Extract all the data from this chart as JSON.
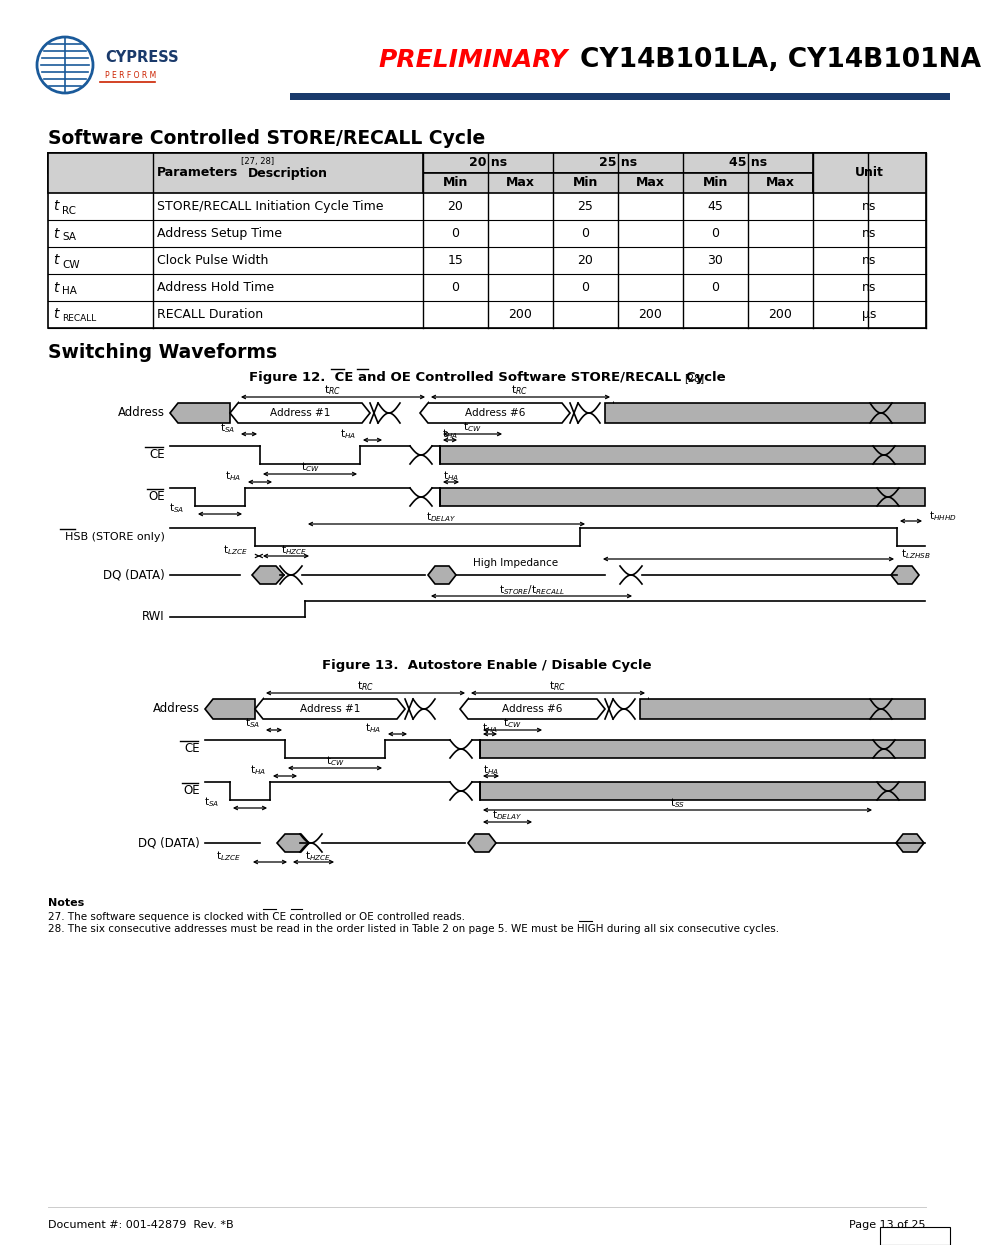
{
  "title_preliminary": "PRELIMINARY",
  "title_chip": "CY14B101LA, CY14B101NA",
  "section_title1": "Software Controlled STORE/RECALL Cycle",
  "section_title2": "Switching Waveforms",
  "fig12_title": "Figure 12.  CE and OE Controlled Software STORE/RECALL Cycle",
  "fig12_superscript": "[28]",
  "fig13_title": "Figure 13.  Autostore Enable / Disable Cycle",
  "footer_left": "Document #: 001-42879  Rev. *B",
  "footer_right": "Page 13 of 25",
  "header_bar_color": "#1a3a6b",
  "preliminary_color": "#ff0000",
  "gray_fill": "#b0b0b0",
  "table_header_bg": "#d0d0d0",
  "lc": "#000000"
}
